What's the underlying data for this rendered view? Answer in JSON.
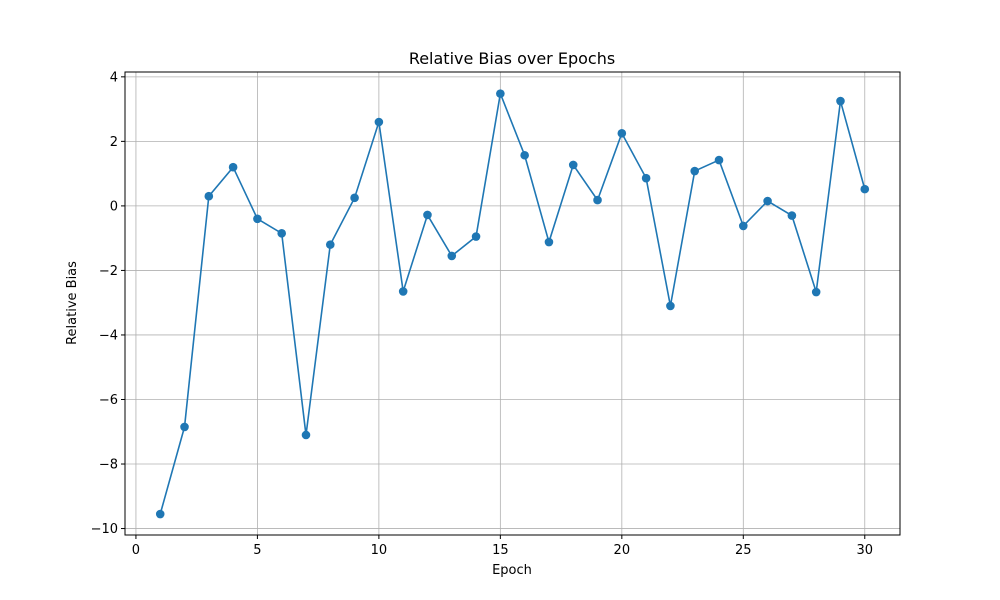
{
  "chart_data": {
    "type": "line",
    "title": "Relative Bias over Epochs",
    "xlabel": "Epoch",
    "ylabel": "Relative Bias",
    "xlim": [
      -0.45,
      31.45
    ],
    "ylim": [
      -10.2,
      4.15
    ],
    "xticks": [
      0,
      5,
      10,
      15,
      20,
      25,
      30
    ],
    "yticks": [
      -10,
      -8,
      -6,
      -4,
      -2,
      0,
      2,
      4
    ],
    "grid": true,
    "color": "#1f77b4",
    "marker": "circle",
    "series": [
      {
        "x": [
          1,
          2,
          3,
          4,
          5,
          6,
          7,
          8,
          9,
          10,
          11,
          12,
          13,
          14,
          15,
          16,
          17,
          18,
          19,
          20,
          21,
          22,
          23,
          24,
          25,
          26,
          27,
          28,
          29,
          30
        ],
        "y": [
          -9.55,
          -6.85,
          0.3,
          1.2,
          -0.4,
          -0.85,
          -7.1,
          -1.2,
          0.25,
          2.6,
          -2.65,
          -0.28,
          -1.55,
          -0.95,
          3.48,
          1.57,
          -1.12,
          1.27,
          0.18,
          2.25,
          0.86,
          -3.1,
          1.08,
          1.42,
          -0.62,
          0.15,
          -0.3,
          -2.67,
          3.25,
          0.52
        ]
      }
    ]
  }
}
